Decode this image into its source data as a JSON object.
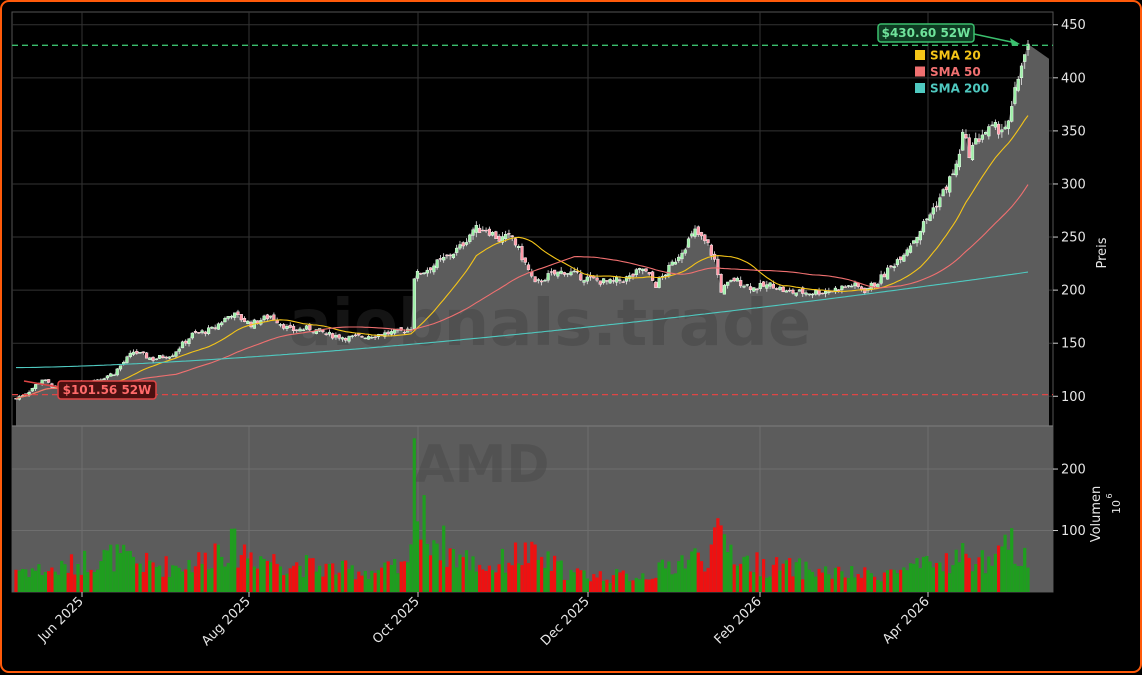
{
  "chart_data": {
    "type": "candlestick",
    "ticker_watermark": "AMD",
    "site_watermark": "aiobnals.trade",
    "x_tick_labels": [
      "Jun 2025",
      "Aug 2025",
      "Oct 2025",
      "Dec 2025",
      "Feb 2026",
      "Apr 2026"
    ],
    "price_axis": {
      "label": "Preis",
      "ticks": [
        100,
        150,
        200,
        250,
        300,
        350,
        400,
        450
      ],
      "ylim": [
        72,
        462
      ]
    },
    "volume_axis": {
      "label": "Volumen",
      "unit_exponent": "6",
      "ticks": [
        100,
        200
      ],
      "ylim": [
        0,
        270
      ]
    },
    "high_52w": {
      "value": 430.6,
      "label": "$430.60 52W",
      "color": "#3bbf6e"
    },
    "low_52w": {
      "value": 101.56,
      "label": "$101.56 52W",
      "color": "#e04545"
    },
    "legend": [
      {
        "name": "SMA 20",
        "color": "#f5c518"
      },
      {
        "name": "SMA 50",
        "color": "#f07070"
      },
      {
        "name": "SMA 200",
        "color": "#4fc9c0"
      }
    ],
    "price_knots": [
      [
        0,
        98
      ],
      [
        4,
        105
      ],
      [
        8,
        116
      ],
      [
        12,
        108
      ],
      [
        18,
        110
      ],
      [
        26,
        117
      ],
      [
        30,
        122
      ],
      [
        36,
        142
      ],
      [
        42,
        135
      ],
      [
        48,
        140
      ],
      [
        54,
        158
      ],
      [
        60,
        163
      ],
      [
        66,
        178
      ],
      [
        72,
        168
      ],
      [
        78,
        176
      ],
      [
        84,
        162
      ],
      [
        90,
        164
      ],
      [
        96,
        158
      ],
      [
        102,
        155
      ],
      [
        110,
        158
      ],
      [
        118,
        161
      ],
      [
        121,
        165
      ],
      [
        122,
        213
      ],
      [
        126,
        220
      ],
      [
        130,
        227
      ],
      [
        136,
        240
      ],
      [
        140,
        257
      ],
      [
        144,
        258
      ],
      [
        148,
        248
      ],
      [
        152,
        250
      ],
      [
        156,
        225
      ],
      [
        159,
        205
      ],
      [
        162,
        212
      ],
      [
        168,
        218
      ],
      [
        176,
        210
      ],
      [
        182,
        207
      ],
      [
        188,
        212
      ],
      [
        192,
        220
      ],
      [
        196,
        205
      ],
      [
        200,
        220
      ],
      [
        204,
        238
      ],
      [
        208,
        255
      ],
      [
        212,
        242
      ],
      [
        214,
        228
      ],
      [
        216,
        200
      ],
      [
        220,
        210
      ],
      [
        226,
        202
      ],
      [
        232,
        205
      ],
      [
        236,
        198
      ],
      [
        244,
        198
      ],
      [
        250,
        200
      ],
      [
        256,
        205
      ],
      [
        260,
        200
      ],
      [
        264,
        208
      ],
      [
        268,
        222
      ],
      [
        272,
        236
      ],
      [
        276,
        252
      ],
      [
        280,
        272
      ],
      [
        284,
        292
      ],
      [
        288,
        316
      ],
      [
        290,
        346
      ],
      [
        292,
        330
      ],
      [
        296,
        348
      ],
      [
        300,
        352
      ],
      [
        304,
        355
      ],
      [
        308,
        415
      ],
      [
        310,
        428
      ]
    ],
    "volume_profile": [
      [
        0,
        38
      ],
      [
        12,
        35
      ],
      [
        22,
        52
      ],
      [
        30,
        58
      ],
      [
        40,
        45
      ],
      [
        48,
        42
      ],
      [
        58,
        52
      ],
      [
        62,
        78
      ],
      [
        68,
        70
      ],
      [
        78,
        52
      ],
      [
        90,
        42
      ],
      [
        100,
        36
      ],
      [
        110,
        34
      ],
      [
        120,
        40
      ],
      [
        122,
        240
      ],
      [
        124,
        120
      ],
      [
        128,
        90
      ],
      [
        134,
        62
      ],
      [
        140,
        48
      ],
      [
        146,
        40
      ],
      [
        152,
        58
      ],
      [
        156,
        62
      ],
      [
        162,
        50
      ],
      [
        170,
        30
      ],
      [
        180,
        26
      ],
      [
        190,
        26
      ],
      [
        196,
        32
      ],
      [
        204,
        52
      ],
      [
        212,
        60
      ],
      [
        216,
        92
      ],
      [
        222,
        52
      ],
      [
        230,
        42
      ],
      [
        240,
        38
      ],
      [
        252,
        30
      ],
      [
        262,
        28
      ],
      [
        270,
        34
      ],
      [
        280,
        42
      ],
      [
        290,
        58
      ],
      [
        300,
        46
      ],
      [
        304,
        78
      ],
      [
        310,
        60
      ]
    ],
    "sma200_start": 127,
    "sma200_end": 217
  }
}
